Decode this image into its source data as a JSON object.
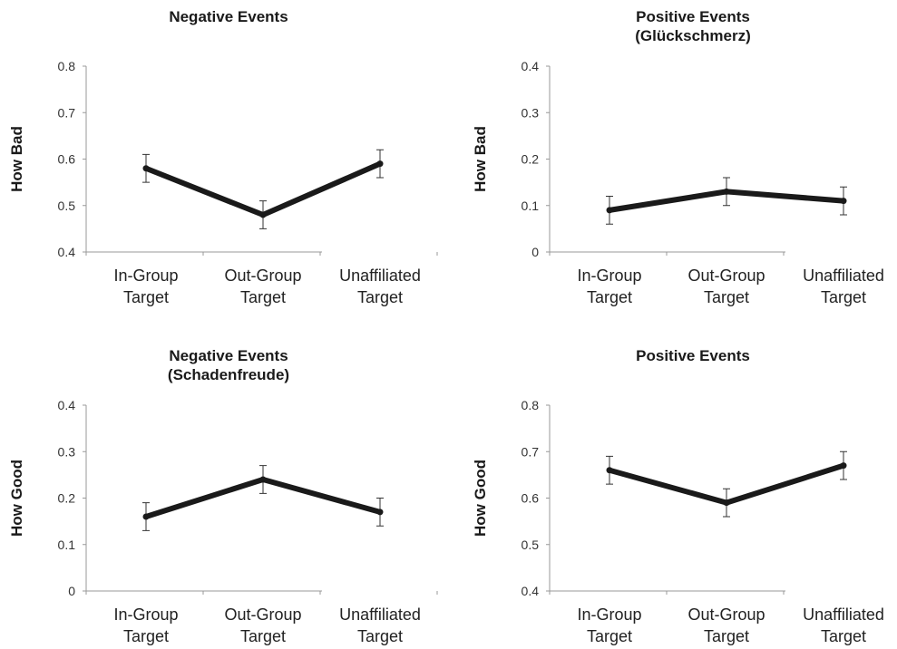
{
  "chart_data": [
    {
      "type": "line",
      "title": [
        "Negative Events"
      ],
      "ylabel": "How Bad",
      "categories": [
        [
          "In-Group",
          "Target"
        ],
        [
          "Out-Group",
          "Target"
        ],
        [
          "Unaffiliated",
          "Target"
        ]
      ],
      "ylim": [
        0.4,
        0.8
      ],
      "yticks": [
        "0.4",
        "0.5",
        "0.6",
        "0.7",
        "0.8"
      ],
      "values": [
        0.58,
        0.48,
        0.59
      ],
      "errors": [
        0.03,
        0.03,
        0.03
      ],
      "grid": false,
      "line_color": "#1a1a1a"
    },
    {
      "type": "line",
      "title": [
        "Positive Events",
        "(Glückschmerz)"
      ],
      "ylabel": "How Bad",
      "categories": [
        [
          "In-Group",
          "Target"
        ],
        [
          "Out-Group",
          "Target"
        ],
        [
          "Unaffiliated",
          "Target"
        ]
      ],
      "ylim": [
        0,
        0.4
      ],
      "yticks": [
        "0",
        "0.1",
        "0.2",
        "0.3",
        "0.4"
      ],
      "values": [
        0.09,
        0.13,
        0.11
      ],
      "errors": [
        0.03,
        0.03,
        0.03
      ],
      "grid": false,
      "line_color": "#1a1a1a"
    },
    {
      "type": "line",
      "title": [
        "Negative Events",
        "(Schadenfreude)"
      ],
      "ylabel": "How Good",
      "categories": [
        [
          "In-Group",
          "Target"
        ],
        [
          "Out-Group",
          "Target"
        ],
        [
          "Unaffiliated",
          "Target"
        ]
      ],
      "ylim": [
        0,
        0.4
      ],
      "yticks": [
        "0",
        "0.1",
        "0.2",
        "0.3",
        "0.4"
      ],
      "values": [
        0.16,
        0.24,
        0.17
      ],
      "errors": [
        0.03,
        0.03,
        0.03
      ],
      "grid": false,
      "line_color": "#1a1a1a"
    },
    {
      "type": "line",
      "title": [
        "Positive Events"
      ],
      "ylabel": "How Good",
      "categories": [
        [
          "In-Group",
          "Target"
        ],
        [
          "Out-Group",
          "Target"
        ],
        [
          "Unaffiliated",
          "Target"
        ]
      ],
      "ylim": [
        0.4,
        0.8
      ],
      "yticks": [
        "0.4",
        "0.5",
        "0.6",
        "0.7",
        "0.8"
      ],
      "values": [
        0.66,
        0.59,
        0.67
      ],
      "errors": [
        0.03,
        0.03,
        0.03
      ],
      "grid": false,
      "line_color": "#1a1a1a"
    }
  ]
}
